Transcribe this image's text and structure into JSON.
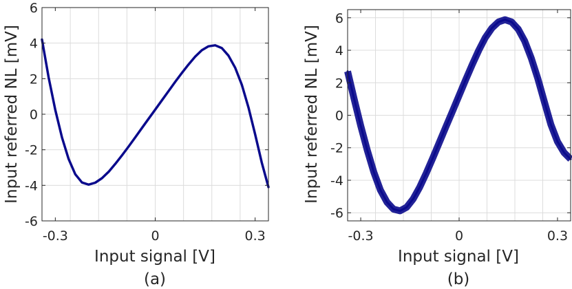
{
  "chart_data": [
    {
      "type": "line",
      "panel_label": "(a)",
      "xlabel": "Input signal [V]",
      "ylabel": "Input referred NL [mV]",
      "xlim": [
        -0.34,
        0.34
      ],
      "ylim": [
        -6,
        6
      ],
      "xticks": [
        -0.3,
        0,
        0.3
      ],
      "xtick_labels": [
        "-0.3",
        "0",
        "0.3"
      ],
      "yticks": [
        -6,
        -4,
        -2,
        0,
        2,
        4,
        6
      ],
      "ytick_labels": [
        "-6",
        "-4",
        "-2",
        "0",
        "2",
        "4",
        "6"
      ],
      "grid": true,
      "line_color": "#0a0a8c",
      "series": [
        {
          "x": [
            -0.34,
            -0.32,
            -0.3,
            -0.28,
            -0.26,
            -0.24,
            -0.22,
            -0.2,
            -0.18,
            -0.16,
            -0.14,
            -0.12,
            -0.1,
            -0.08,
            -0.06,
            -0.04,
            -0.02,
            0.0,
            0.02,
            0.04,
            0.06,
            0.08,
            0.1,
            0.12,
            0.14,
            0.16,
            0.18,
            0.2,
            0.22,
            0.24,
            0.26,
            0.28,
            0.3,
            0.32,
            0.34
          ],
          "y": [
            4.2,
            2.06,
            0.23,
            -1.3,
            -2.52,
            -3.38,
            -3.84,
            -3.96,
            -3.85,
            -3.6,
            -3.24,
            -2.8,
            -2.32,
            -1.82,
            -1.3,
            -0.78,
            -0.26,
            0.26,
            0.78,
            1.3,
            1.82,
            2.32,
            2.8,
            3.24,
            3.6,
            3.82,
            3.88,
            3.72,
            3.3,
            2.62,
            1.66,
            0.38,
            -1.12,
            -2.72,
            -4.1
          ]
        }
      ]
    },
    {
      "type": "line",
      "panel_label": "(b)",
      "xlabel": "Input signal [V]",
      "ylabel": "Input referred NL [mV]",
      "xlim": [
        -0.34,
        0.34
      ],
      "ylim": [
        -6.5,
        6.5
      ],
      "xticks": [
        -0.3,
        0,
        0.3
      ],
      "xtick_labels": [
        "-0.3",
        "0",
        "0.3"
      ],
      "yticks": [
        -6,
        -4,
        -2,
        0,
        2,
        4,
        6
      ],
      "ytick_labels": [
        "-6",
        "-4",
        "-2",
        "0",
        "2",
        "4",
        "6"
      ],
      "grid": true,
      "line_color": "#0a0a8c",
      "series": [
        {
          "x": [
            -0.34,
            -0.32,
            -0.3,
            -0.28,
            -0.26,
            -0.24,
            -0.22,
            -0.2,
            -0.18,
            -0.16,
            -0.14,
            -0.12,
            -0.1,
            -0.08,
            -0.06,
            -0.04,
            -0.02,
            0.0,
            0.02,
            0.04,
            0.06,
            0.08,
            0.1,
            0.12,
            0.14,
            0.16,
            0.18,
            0.2,
            0.22,
            0.24,
            0.26,
            0.28,
            0.3,
            0.32,
            0.34
          ],
          "y": [
            2.7,
            1.0,
            -0.65,
            -2.15,
            -3.5,
            -4.6,
            -5.35,
            -5.78,
            -5.88,
            -5.66,
            -5.15,
            -4.42,
            -3.55,
            -2.62,
            -1.66,
            -0.7,
            0.26,
            1.22,
            2.18,
            3.12,
            4.0,
            4.78,
            5.36,
            5.74,
            5.88,
            5.74,
            5.3,
            4.56,
            3.52,
            2.25,
            0.82,
            -0.58,
            -1.62,
            -2.3,
            -2.7
          ]
        }
      ]
    }
  ]
}
